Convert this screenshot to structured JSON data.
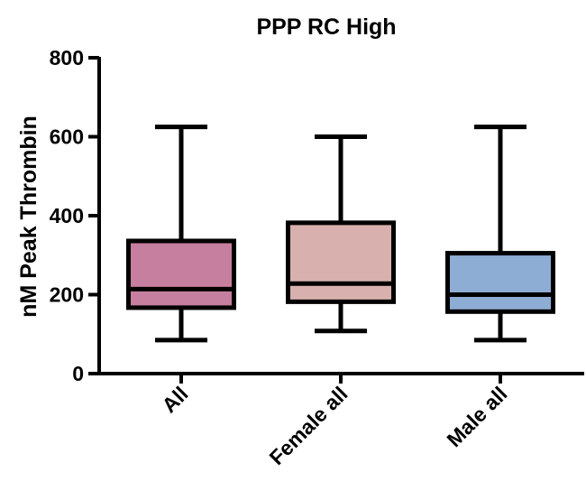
{
  "chart_data": {
    "type": "box",
    "title": "PPP RC High",
    "xlabel": "",
    "ylabel": "nM Peak Thrombin",
    "ylim": [
      0,
      800
    ],
    "yticks": [
      "0",
      "200",
      "400",
      "600",
      "800"
    ],
    "grid": false,
    "legend": "none",
    "categories": [
      "All",
      "Female all",
      "Male all"
    ],
    "boxes": [
      {
        "category": "All",
        "min": 85,
        "q1": 167,
        "median": 214,
        "q3": 336,
        "max": 625,
        "color": "#c67f9f"
      },
      {
        "category": "Female all",
        "min": 108,
        "q1": 182,
        "median": 228,
        "q3": 382,
        "max": 600,
        "color": "#d8b1ae"
      },
      {
        "category": "Male all",
        "min": 85,
        "q1": 157,
        "median": 200,
        "q3": 305,
        "max": 625,
        "color": "#8eadd4"
      }
    ],
    "line_color": "#000000"
  }
}
